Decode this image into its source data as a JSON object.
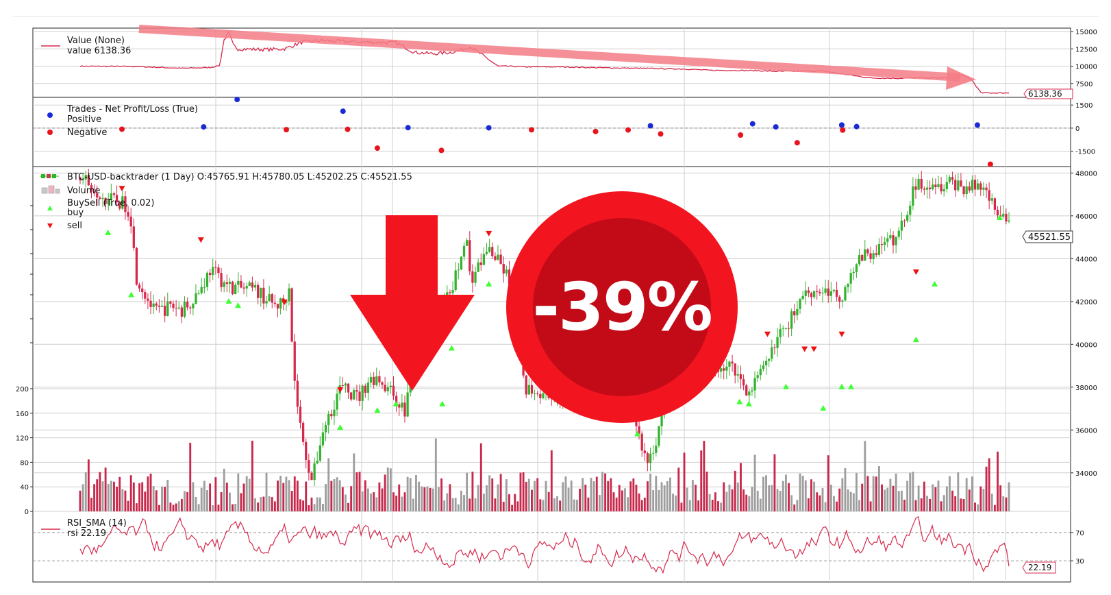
{
  "chart_data": [
    {
      "type": "line",
      "panel": "value",
      "legend_label": "Value (None)",
      "legend_value": "value 6138.36",
      "last_value_tag": "6138.36",
      "y_ticks": [
        "15000",
        "12500",
        "10000",
        "7500"
      ],
      "ylim": [
        5500,
        15500
      ],
      "series": [
        {
          "color": "#d6284b",
          "x": [
            0.0,
            0.06,
            0.11,
            0.14,
            0.15,
            0.155,
            0.16,
            0.165,
            0.17,
            0.2,
            0.22,
            0.24,
            0.26,
            0.3,
            0.34,
            0.36,
            0.38,
            0.4,
            0.42,
            0.45,
            0.46,
            0.48,
            0.5,
            0.52,
            0.55,
            0.6,
            0.65,
            0.68,
            0.7,
            0.73,
            0.75,
            0.8,
            0.85,
            0.88,
            0.9,
            0.92,
            0.94,
            0.95,
            0.96,
            0.97,
            1.0
          ],
          "y": [
            10000,
            9950,
            9700,
            9800,
            10100,
            13800,
            14800,
            13000,
            12500,
            12400,
            12500,
            13500,
            13700,
            13500,
            13400,
            12000,
            11800,
            12000,
            12800,
            10000,
            10000,
            9900,
            9900,
            9900,
            9800,
            9700,
            9600,
            9400,
            9400,
            9350,
            9250,
            9300,
            8300,
            8250,
            8300,
            8300,
            8300,
            8700,
            8000,
            6138,
            6138
          ]
        }
      ]
    },
    {
      "type": "scatter",
      "panel": "trades",
      "legend_title": "Trades - Net Profit/Loss (True)",
      "y_ticks": [
        "1500",
        "0",
        "-1500"
      ],
      "ylim": [
        -2500,
        2000
      ],
      "series": [
        {
          "name": "Positive",
          "color": "#1a2bd6",
          "x": [
            0.133,
            0.169,
            0.283,
            0.353,
            0.44,
            0.614,
            0.724,
            0.749,
            0.82,
            0.82,
            0.836,
            0.966
          ],
          "y": [
            80,
            1860,
            1100,
            30,
            20,
            150,
            280,
            80,
            200,
            200,
            100,
            200
          ]
        },
        {
          "name": "Negative",
          "color": "#e8131c",
          "x": [
            0.045,
            0.222,
            0.288,
            0.32,
            0.389,
            0.486,
            0.555,
            0.59,
            0.625,
            0.711,
            0.772,
            0.821,
            0.98
          ],
          "y": [
            -70,
            -100,
            -80,
            -1300,
            -1450,
            -110,
            -220,
            -120,
            -380,
            -450,
            -950,
            -130,
            -2350
          ]
        }
      ]
    },
    {
      "type": "candlestick",
      "panel": "price",
      "legend_ohlc": "BTC-USD-backtrader (1 Day) O:45765.91 H:45780.05 L:45202.25 C:45521.55",
      "legend_volume": "Volume",
      "legend_buysell": "BuySell (True, 0.02)",
      "legend_buy": "buy",
      "legend_sell": "sell",
      "last_value_tag": "45521.55",
      "y_ticks": [
        "48000",
        "46000",
        "44000",
        "42000",
        "40000",
        "38000",
        "36000",
        "34000"
      ],
      "ylim": [
        32200,
        48300
      ],
      "close_path": {
        "x": [
          0.0,
          0.03,
          0.05,
          0.055,
          0.06,
          0.08,
          0.1,
          0.11,
          0.13,
          0.14,
          0.16,
          0.19,
          0.21,
          0.22,
          0.225,
          0.23,
          0.24,
          0.245,
          0.25,
          0.26,
          0.28,
          0.3,
          0.31,
          0.32,
          0.33,
          0.34,
          0.35,
          0.36,
          0.38,
          0.4,
          0.41,
          0.415,
          0.42,
          0.44,
          0.46,
          0.47,
          0.48,
          0.52,
          0.54,
          0.55,
          0.56,
          0.57,
          0.58,
          0.59,
          0.6,
          0.61,
          0.62,
          0.63,
          0.64,
          0.65,
          0.66,
          0.67,
          0.68,
          0.7,
          0.72,
          0.74,
          0.75,
          0.76,
          0.77,
          0.78,
          0.8,
          0.82,
          0.83,
          0.84,
          0.86,
          0.88,
          0.9,
          0.92,
          0.93,
          0.94,
          0.95,
          0.97,
          0.98,
          1.0
        ],
        "y": [
          47800,
          46800,
          46500,
          45800,
          43200,
          41500,
          41800,
          41600,
          42600,
          43500,
          42700,
          42500,
          41800,
          42000,
          42900,
          38500,
          35300,
          34500,
          33600,
          35800,
          38000,
          37500,
          38300,
          38500,
          38000,
          37500,
          36800,
          40300,
          41200,
          42500,
          44000,
          45400,
          43000,
          44500,
          43200,
          40000,
          38000,
          37500,
          40500,
          39500,
          40400,
          40600,
          38000,
          38500,
          36000,
          34500,
          35500,
          37500,
          39000,
          38000,
          41800,
          38800,
          39000,
          39000,
          37800,
          39000,
          40500,
          40600,
          41700,
          42500,
          42500,
          42200,
          43500,
          44000,
          44500,
          45000,
          47500,
          47600,
          47400,
          47600,
          47300,
          47400,
          46800,
          45521.55
        ]
      },
      "buy_markers": {
        "x": [
          0.03,
          0.055,
          0.16,
          0.17,
          0.28,
          0.32,
          0.34,
          0.39,
          0.4,
          0.44,
          0.6,
          0.71,
          0.72,
          0.76,
          0.8,
          0.82,
          0.83,
          0.9,
          0.92,
          0.99
        ],
        "y": [
          45200,
          42300,
          42000,
          41800,
          36100,
          36900,
          37200,
          37200,
          39800,
          42800,
          35800,
          37300,
          37200,
          38000,
          37000,
          38000,
          38000,
          40200,
          42800,
          45900
        ]
      },
      "sell_markers": {
        "x": [
          0.045,
          0.13,
          0.22,
          0.28,
          0.44,
          0.65,
          0.74,
          0.78,
          0.79,
          0.82,
          0.9
        ],
        "y": [
          47300,
          44900,
          42000,
          37900,
          45200,
          38000,
          40500,
          39800,
          39800,
          40500,
          43400
        ]
      },
      "volume": {
        "y_ticks": [
          "200",
          "160",
          "120",
          "80",
          "40",
          "0"
        ],
        "ylim": [
          0,
          200
        ]
      }
    },
    {
      "type": "line",
      "panel": "rsi",
      "legend_label": "RSI_SMA (14)",
      "legend_value": "rsi 22.19",
      "last_value_tag": "22.19",
      "y_ticks": [
        "70",
        "30"
      ],
      "ylim": [
        0,
        100
      ]
    }
  ],
  "overlay": {
    "percent_label": "-39%",
    "down_arrow_color": "#f2151f",
    "circle_outer_color": "#f2151f",
    "circle_inner_color": "#c20b17",
    "trend_arrow_color": "#f47d86"
  },
  "colors": {
    "up": "#33b22e",
    "down": "#d6284b",
    "volume_up": "#9e9e9e",
    "volume_down": "#c8284b",
    "buy": "#3dff33",
    "sell": "#ee1111",
    "grid": "#cfcfcf"
  }
}
